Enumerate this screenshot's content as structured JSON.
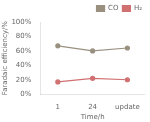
{
  "chart_data": {
    "type": "line",
    "xlabel": "Time/h",
    "ylabel": "Faradaic efficiency/%",
    "categories": [
      "1",
      "24",
      "update"
    ],
    "series": [
      {
        "name": "CO",
        "color": "#999080",
        "values": [
          67,
          60,
          64
        ]
      },
      {
        "name": "H₂",
        "color": "#d07070",
        "values": [
          17,
          22,
          20
        ]
      }
    ],
    "ylim": [
      0,
      100
    ],
    "yticks": [
      {
        "value": 0,
        "label": "0%"
      },
      {
        "value": 20,
        "label": "20%"
      },
      {
        "value": 40,
        "label": "40%"
      },
      {
        "value": 60,
        "label": "60%"
      },
      {
        "value": 80,
        "label": "80%"
      },
      {
        "value": 100,
        "label": "100%"
      }
    ],
    "marker": "circle",
    "grid": false,
    "legend": "upper right"
  }
}
